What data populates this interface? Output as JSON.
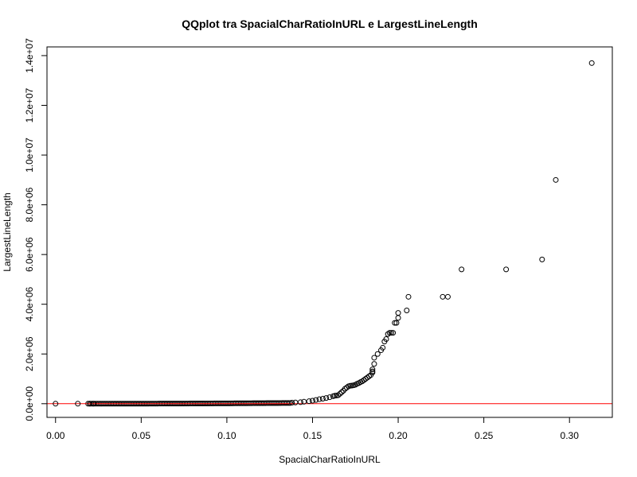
{
  "chart_data": {
    "type": "scatter",
    "title": "QQplot tra SpacialCharRatioInURL e LargestLineLength",
    "xlabel": "SpacialCharRatioInURL",
    "ylabel": "LargestLineLength",
    "xlim": [
      -0.005,
      0.325
    ],
    "ylim": [
      -550000,
      14350000
    ],
    "x_ticks": [
      0.0,
      0.05,
      0.1,
      0.15,
      0.2,
      0.25,
      0.3
    ],
    "x_tick_labels": [
      "0.00",
      "0.05",
      "0.10",
      "0.15",
      "0.20",
      "0.25",
      "0.30"
    ],
    "y_ticks": [
      0,
      2000000,
      4000000,
      6000000,
      8000000,
      10000000,
      12000000,
      14000000
    ],
    "y_tick_labels": [
      "0.0e+00",
      "2.0e+06",
      "4.0e+06",
      "6.0e+06",
      "8.0e+06",
      "1.0e+07",
      "1.2e+07",
      "1.4e+07"
    ],
    "reference_line": {
      "y": 0,
      "color": "#ff0000"
    },
    "grid": false,
    "marker": "open-circle",
    "dense_band": {
      "x_start": 0.019,
      "x_end": 0.137,
      "y_start": 0,
      "y_end": 30000
    },
    "points": [
      [
        0.0,
        0
      ],
      [
        0.013,
        0
      ],
      [
        0.02,
        0
      ],
      [
        0.022,
        0
      ],
      [
        0.138,
        40000
      ],
      [
        0.14,
        50000
      ],
      [
        0.143,
        60000
      ],
      [
        0.145,
        80000
      ],
      [
        0.148,
        100000
      ],
      [
        0.15,
        120000
      ],
      [
        0.152,
        150000
      ],
      [
        0.154,
        180000
      ],
      [
        0.156,
        200000
      ],
      [
        0.158,
        230000
      ],
      [
        0.16,
        260000
      ],
      [
        0.162,
        300000
      ],
      [
        0.163,
        320000
      ],
      [
        0.164,
        330000
      ],
      [
        0.165,
        340000
      ],
      [
        0.166,
        400000
      ],
      [
        0.167,
        460000
      ],
      [
        0.168,
        520000
      ],
      [
        0.169,
        600000
      ],
      [
        0.17,
        650000
      ],
      [
        0.171,
        700000
      ],
      [
        0.172,
        720000
      ],
      [
        0.173,
        730000
      ],
      [
        0.174,
        740000
      ],
      [
        0.175,
        760000
      ],
      [
        0.176,
        800000
      ],
      [
        0.177,
        830000
      ],
      [
        0.178,
        870000
      ],
      [
        0.179,
        900000
      ],
      [
        0.18,
        950000
      ],
      [
        0.181,
        1000000
      ],
      [
        0.182,
        1050000
      ],
      [
        0.183,
        1100000
      ],
      [
        0.184,
        1150000
      ],
      [
        0.185,
        1250000
      ],
      [
        0.185,
        1300000
      ],
      [
        0.185,
        1380000
      ],
      [
        0.186,
        1600000
      ],
      [
        0.186,
        1850000
      ],
      [
        0.188,
        2000000
      ],
      [
        0.19,
        2150000
      ],
      [
        0.191,
        2250000
      ],
      [
        0.192,
        2500000
      ],
      [
        0.193,
        2600000
      ],
      [
        0.194,
        2800000
      ],
      [
        0.195,
        2850000
      ],
      [
        0.196,
        2850000
      ],
      [
        0.197,
        2850000
      ],
      [
        0.198,
        3250000
      ],
      [
        0.199,
        3250000
      ],
      [
        0.2,
        3450000
      ],
      [
        0.2,
        3650000
      ],
      [
        0.205,
        3750000
      ],
      [
        0.206,
        4300000
      ],
      [
        0.226,
        4300000
      ],
      [
        0.229,
        4300000
      ],
      [
        0.237,
        5400000
      ],
      [
        0.263,
        5400000
      ],
      [
        0.284,
        5800000
      ],
      [
        0.292,
        9000000
      ],
      [
        0.313,
        13700000
      ]
    ]
  }
}
